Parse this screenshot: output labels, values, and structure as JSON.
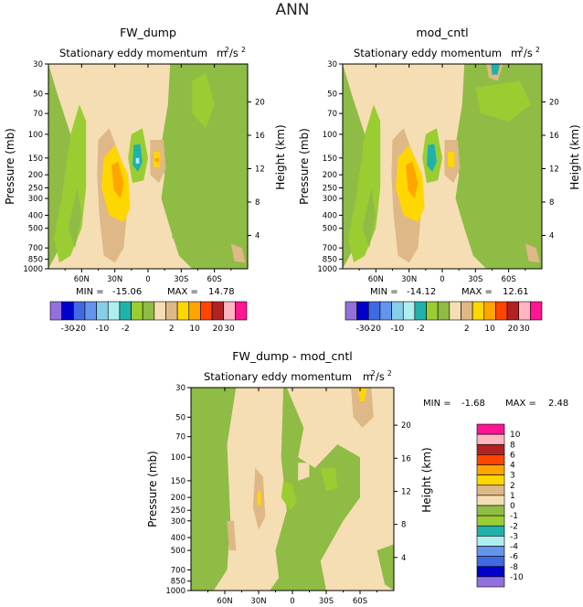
{
  "figure": {
    "title": "ANN"
  },
  "chart_data": [
    {
      "type": "heatmap",
      "panel": "top-left",
      "title": "FW_dump",
      "subtitle": "Stationary eddy momentum",
      "units": "m²/s²",
      "units_base": "m",
      "units_sup1": "2",
      "units_sep": "/s",
      "units_sup2": "2",
      "ylabel": "Pressure (mb)",
      "ylabel_right": "Height (km)",
      "xticks": [
        "60N",
        "30N",
        "0",
        "30S",
        "60S"
      ],
      "yticks": [
        "30",
        "50",
        "70",
        "100",
        "150",
        "200",
        "250",
        "300",
        "400",
        "500",
        "700",
        "850",
        "1000"
      ],
      "yticks_right": [
        "20",
        "16",
        "12",
        "8",
        "4"
      ],
      "stats": {
        "min_label": "MIN =",
        "min": "-15.06",
        "max_label": "MAX =",
        "max": "14.78"
      },
      "colorbar": {
        "orientation": "horizontal",
        "labels": [
          "-30",
          "-20",
          "-10",
          "-2",
          "2",
          "10",
          "20",
          "30"
        ],
        "colors": [
          "#9370db",
          "#0000cd",
          "#4169e1",
          "#6495ed",
          "#87ceeb",
          "#afeeee",
          "#20b2aa",
          "#9acd32",
          "#8fbc45",
          "#f5deb3",
          "#deb887",
          "#ffd700",
          "#ffa500",
          "#ff4500",
          "#b22222",
          "#ffb6c1",
          "#ff1493"
        ]
      }
    },
    {
      "type": "heatmap",
      "panel": "top-right",
      "title": "mod_cntl",
      "subtitle": "Stationary eddy momentum",
      "units": "m²/s²",
      "units_base": "m",
      "units_sup1": "2",
      "units_sep": "/s",
      "units_sup2": "2",
      "ylabel": "Pressure (mb)",
      "ylabel_right": "Height (km)",
      "xticks": [
        "60N",
        "30N",
        "0",
        "30S",
        "60S"
      ],
      "yticks": [
        "30",
        "50",
        "70",
        "100",
        "150",
        "200",
        "250",
        "300",
        "400",
        "500",
        "700",
        "850",
        "1000"
      ],
      "yticks_right": [
        "20",
        "16",
        "12",
        "8",
        "4"
      ],
      "stats": {
        "min_label": "MIN =",
        "min": "-14.12",
        "max_label": "MAX =",
        "max": "12.61"
      },
      "colorbar": {
        "orientation": "horizontal",
        "labels": [
          "-30",
          "-20",
          "-10",
          "-2",
          "2",
          "10",
          "20",
          "30"
        ],
        "colors": [
          "#9370db",
          "#0000cd",
          "#4169e1",
          "#6495ed",
          "#87ceeb",
          "#afeeee",
          "#20b2aa",
          "#9acd32",
          "#8fbc45",
          "#f5deb3",
          "#deb887",
          "#ffd700",
          "#ffa500",
          "#ff4500",
          "#b22222",
          "#ffb6c1",
          "#ff1493"
        ]
      }
    },
    {
      "type": "heatmap",
      "panel": "bottom",
      "title": "FW_dump - mod_cntl",
      "subtitle": "Stationary eddy momentum",
      "units": "m²/s²",
      "units_base": "m",
      "units_sup1": "2",
      "units_sep": "/s",
      "units_sup2": "2",
      "ylabel": "Pressure (mb)",
      "ylabel_right": "Height (km)",
      "xticks": [
        "60N",
        "30N",
        "0",
        "30S",
        "60S"
      ],
      "yticks": [
        "30",
        "50",
        "70",
        "100",
        "150",
        "200",
        "250",
        "300",
        "400",
        "500",
        "700",
        "850",
        "1000"
      ],
      "yticks_right": [
        "20",
        "16",
        "12",
        "8",
        "4"
      ],
      "stats": {
        "min_label": "MIN =",
        "min": "-1.68",
        "max_label": "MAX =",
        "max": "2.48"
      },
      "colorbar": {
        "orientation": "vertical",
        "labels": [
          "10",
          "8",
          "6",
          "4",
          "3",
          "2",
          "1",
          "0",
          "-1",
          "-2",
          "-3",
          "-4",
          "-6",
          "-8",
          "-10"
        ],
        "colors": [
          "#ff1493",
          "#ffb6c1",
          "#b22222",
          "#ff4500",
          "#ffa500",
          "#ffd700",
          "#deb887",
          "#f5deb3",
          "#8fbc45",
          "#9acd32",
          "#20b2aa",
          "#afeeee",
          "#6495ed",
          "#4169e1",
          "#0000cd",
          "#9370db"
        ]
      }
    }
  ]
}
